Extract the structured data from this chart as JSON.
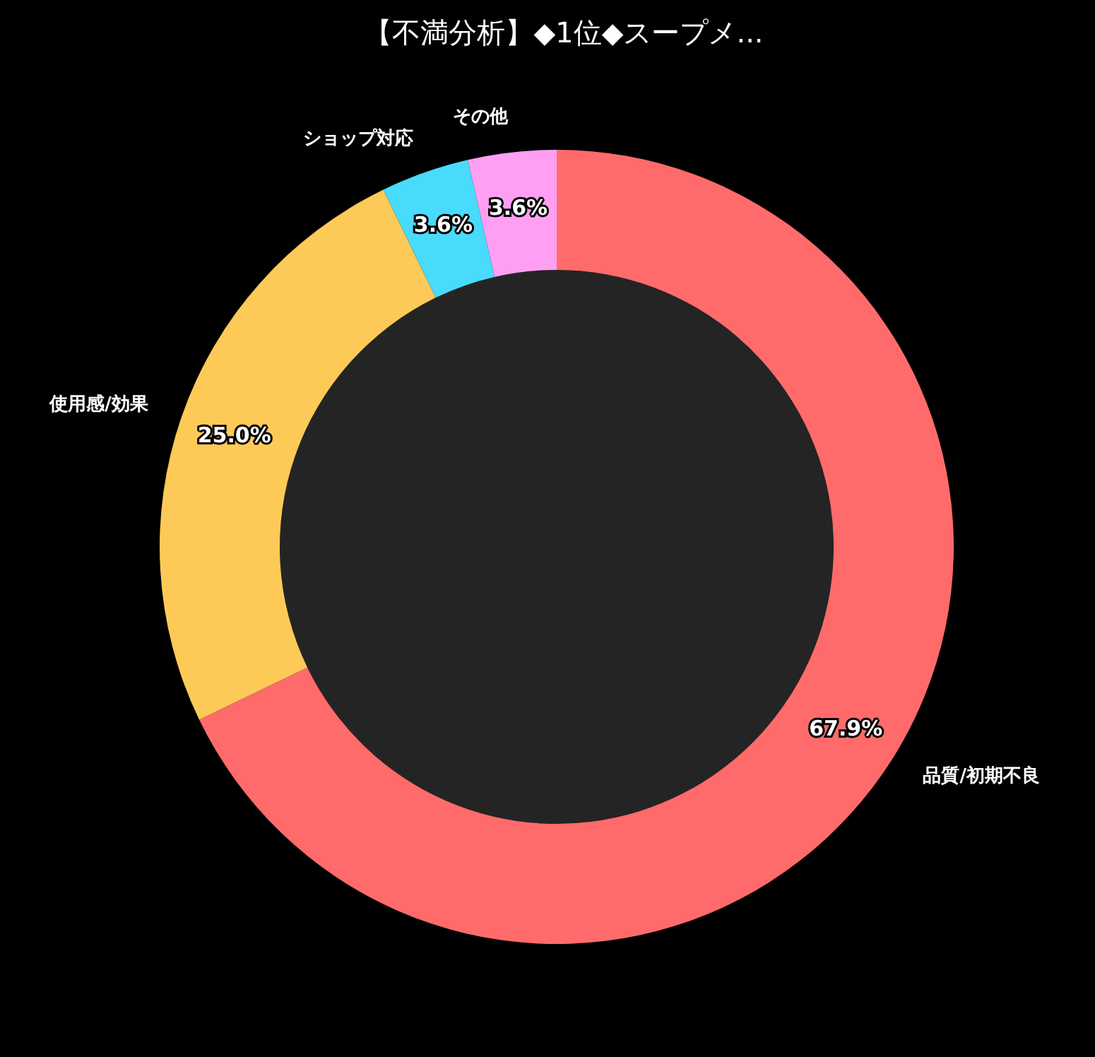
{
  "chart_data": {
    "type": "donut",
    "title": "【不満分析】◆1位◆スープメ...",
    "categories": [
      "品質/初期不良",
      "使用感/効果",
      "ショップ対応",
      "その他"
    ],
    "values": [
      67.9,
      25.0,
      3.6,
      3.6
    ],
    "colors": [
      "#ff6b6b",
      "#feca57",
      "#48dbfb",
      "#ff9ff3"
    ],
    "value_labels": [
      "67.9%",
      "25.0%",
      "3.6%",
      "3.6%"
    ],
    "legend": false
  }
}
